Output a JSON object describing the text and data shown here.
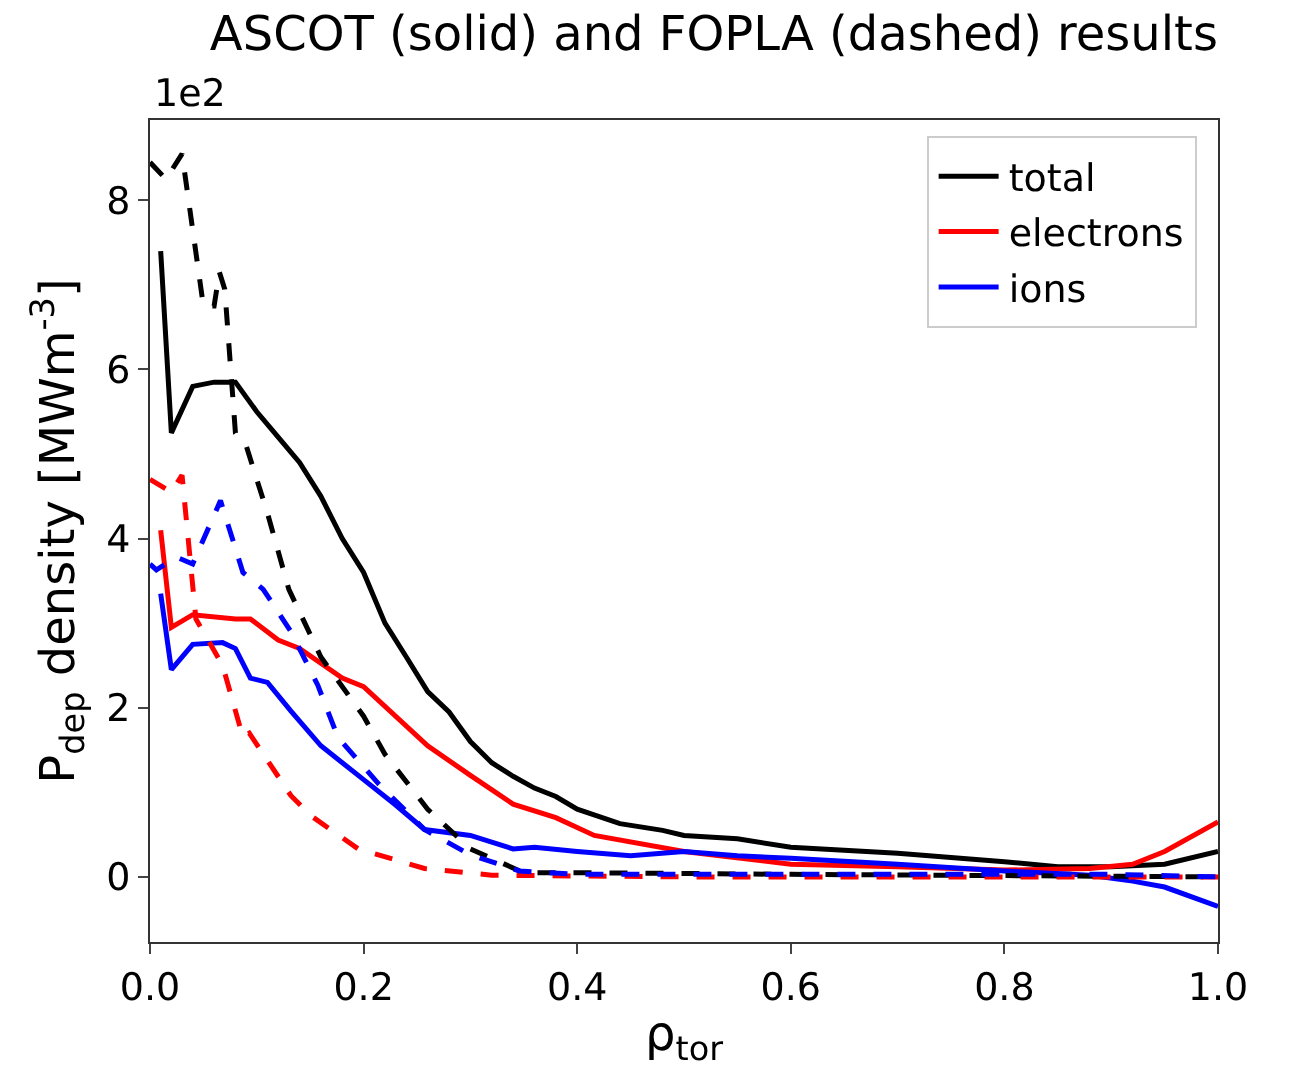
{
  "chart_data": {
    "type": "line",
    "title": "ASCOT (solid) and FOPLA (dashed) results",
    "xlabel": "ρ$_{tor}$",
    "ylabel": "P$_{dep}$ density [MWm$^{-3}$]",
    "annotations": [
      "1e2"
    ],
    "xlim": [
      0.0,
      1.0
    ],
    "ylim": [
      -0.77,
      8.95
    ],
    "xticks": [
      {
        "value": 0,
        "label": "0.0"
      },
      {
        "value": 0.2,
        "label": "0.2"
      },
      {
        "value": 0.4,
        "label": "0.4"
      },
      {
        "value": 0.6,
        "label": "0.6"
      },
      {
        "value": 0.8,
        "label": "0.8"
      },
      {
        "value": 1,
        "label": "1.0"
      }
    ],
    "yticks": [
      0,
      2,
      4,
      6,
      8
    ],
    "legend": "top right",
    "marker": "none",
    "series": [
      {
        "name": "total",
        "color": "#000000",
        "line_style": "solid",
        "x": [
          0.01,
          0.02,
          0.04,
          0.06,
          0.08,
          0.1,
          0.12,
          0.14,
          0.16,
          0.18,
          0.2,
          0.22,
          0.24,
          0.26,
          0.28,
          0.3,
          0.32,
          0.34,
          0.36,
          0.38,
          0.4,
          0.44,
          0.48,
          0.5,
          0.55,
          0.6,
          0.7,
          0.8,
          0.85,
          0.9,
          0.95,
          1.0
        ],
        "values": [
          7.4,
          5.25,
          5.8,
          5.85,
          5.85,
          5.5,
          5.2,
          4.9,
          4.5,
          4.0,
          3.6,
          3.0,
          2.6,
          2.19,
          1.95,
          1.6,
          1.35,
          1.19,
          1.05,
          0.95,
          0.8,
          0.63,
          0.55,
          0.49,
          0.45,
          0.35,
          0.28,
          0.18,
          0.12,
          0.12,
          0.15,
          0.3
        ]
      },
      {
        "name": "electrons",
        "color": "#ff0000",
        "line_style": "solid",
        "x": [
          0.01,
          0.02,
          0.04,
          0.08,
          0.094,
          0.12,
          0.14,
          0.18,
          0.2,
          0.26,
          0.3,
          0.34,
          0.38,
          0.416,
          0.5,
          0.6,
          0.7,
          0.8,
          0.88,
          0.92,
          0.95,
          1.0
        ],
        "values": [
          4.1,
          2.95,
          3.1,
          3.05,
          3.05,
          2.8,
          2.7,
          2.35,
          2.25,
          1.55,
          1.2,
          0.86,
          0.7,
          0.49,
          0.3,
          0.15,
          0.12,
          0.08,
          0.1,
          0.15,
          0.3,
          0.65
        ]
      },
      {
        "name": "ions",
        "color": "#0000ff",
        "line_style": "solid",
        "x": [
          0.01,
          0.02,
          0.04,
          0.068,
          0.08,
          0.094,
          0.11,
          0.132,
          0.16,
          0.2,
          0.23,
          0.257,
          0.3,
          0.34,
          0.36,
          0.4,
          0.45,
          0.5,
          0.55,
          0.6,
          0.7,
          0.8,
          0.88,
          0.92,
          0.95,
          1.0
        ],
        "values": [
          3.35,
          2.45,
          2.75,
          2.77,
          2.7,
          2.35,
          2.3,
          1.96,
          1.55,
          1.15,
          0.85,
          0.56,
          0.49,
          0.33,
          0.35,
          0.3,
          0.25,
          0.3,
          0.25,
          0.22,
          0.15,
          0.07,
          0.02,
          -0.05,
          -0.12,
          -0.35
        ]
      },
      {
        "color": "#000000",
        "line_style": "dashed",
        "x": [
          0.0,
          0.015,
          0.03,
          0.05,
          0.06,
          0.065,
          0.07,
          0.08,
          0.09,
          0.11,
          0.13,
          0.16,
          0.2,
          0.22,
          0.26,
          0.3,
          0.35,
          0.4,
          0.6,
          1.0
        ],
        "values": [
          8.45,
          8.25,
          8.55,
          6.75,
          6.75,
          7.15,
          6.95,
          5.25,
          5.1,
          4.3,
          3.4,
          2.6,
          1.9,
          1.45,
          0.8,
          0.33,
          0.05,
          0.05,
          0.03,
          0.0
        ]
      },
      {
        "color": "#ff0000",
        "line_style": "dashed",
        "x": [
          0.0,
          0.02,
          0.03,
          0.043,
          0.068,
          0.087,
          0.093,
          0.132,
          0.151,
          0.195,
          0.257,
          0.32,
          0.5,
          1.0
        ],
        "values": [
          4.7,
          4.55,
          4.75,
          3.05,
          2.5,
          1.65,
          1.7,
          0.96,
          0.72,
          0.33,
          0.1,
          0.02,
          0.0,
          0.0
        ]
      },
      {
        "color": "#0000ff",
        "line_style": "dashed",
        "x": [
          0.0,
          0.006,
          0.025,
          0.04,
          0.066,
          0.087,
          0.106,
          0.132,
          0.157,
          0.176,
          0.214,
          0.257,
          0.3,
          0.346,
          0.4,
          0.9,
          1.0
        ],
        "values": [
          3.7,
          3.63,
          3.78,
          3.7,
          4.45,
          3.6,
          3.4,
          2.9,
          2.27,
          1.65,
          1.1,
          0.56,
          0.26,
          0.07,
          0.03,
          0.03,
          0.0
        ]
      }
    ]
  }
}
